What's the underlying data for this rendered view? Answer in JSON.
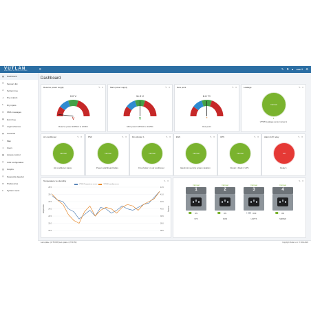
{
  "brand": {
    "name": "VUTLAN",
    "tagline": "MONITORING & CONTROL SYSTEMS"
  },
  "topbar": {
    "user": "user1"
  },
  "sidebar": {
    "items": [
      {
        "label": "Dashboard",
        "icon": "dashboard-icon"
      },
      {
        "label": "Sensors list",
        "icon": "list-icon"
      },
      {
        "label": "System tree",
        "icon": "tree-icon"
      },
      {
        "label": "Dry outputs",
        "icon": "output-icon"
      },
      {
        "label": "Dry inputs",
        "icon": "input-icon"
      },
      {
        "label": "SMS messages",
        "icon": "sms-icon"
      },
      {
        "label": "Event log",
        "icon": "log-icon"
      },
      {
        "label": "Logic schemes",
        "icon": "logic-icon"
      },
      {
        "label": "Cameras",
        "icon": "camera-icon"
      },
      {
        "label": "Map",
        "icon": "map-icon"
      },
      {
        "label": "Users",
        "icon": "users-icon"
      },
      {
        "label": "Access control",
        "icon": "lock-icon"
      },
      {
        "label": "CAN configuration",
        "icon": "can-icon"
      },
      {
        "label": "Graphs",
        "icon": "graph-icon"
      },
      {
        "label": "Nanovolts detector",
        "icon": "detector-icon"
      },
      {
        "label": "Preferences",
        "icon": "gear-icon"
      },
      {
        "label": "System menu",
        "icon": "menu-icon"
      }
    ]
  },
  "page": {
    "title": "Dashboard"
  },
  "gauges": [
    {
      "title": "Reserve power supply",
      "value": "0.0 V",
      "letter": "V",
      "letter_color": "#c0392b",
      "caption": "Reserve power 220VAC to 12VDC",
      "needle_frac": 0.04
    },
    {
      "title": "Main power supply",
      "value": "11.9 V",
      "letter": "V",
      "letter_color": "#4caf50",
      "caption": "Main power 220VAC to 12VDC",
      "needle_frac": 0.5
    },
    {
      "title": "Dew point",
      "value": "6.6 °C",
      "letter": "°",
      "letter_color": "#e67e22",
      "caption": "Dew point",
      "needle_frac": 0.5
    }
  ],
  "leakage": {
    "title": "Leakage",
    "status": "Normal",
    "caption": "VT535 Leakage sensor (area 1)",
    "color": "#7ab32e"
  },
  "status_panels": [
    {
      "title": "Air conditioner",
      "status": "Normal",
      "caption": "Air conditioner status",
      "color": "#7ab32e"
    },
    {
      "title": "PSF",
      "status": "Normal",
      "caption": "Power switchboard failure",
      "color": "#7ab32e"
    },
    {
      "title": "Fire shutter 1",
      "status": "Normal",
      "caption": "Fire shutter 1 is air conditioner",
      "color": "#7ab32e"
    },
    {
      "title": "ESS",
      "status": "Normal",
      "caption": "Electronic security system violation",
      "color": "#7ab32e"
    },
    {
      "title": "UPS",
      "status": "Normal",
      "caption": "Router 1 Rack 1 UPS",
      "color": "#7ab32e"
    },
    {
      "title": "Alarm 12V relay",
      "status": "Off",
      "caption": "Relay 1",
      "color": "#e53935"
    }
  ],
  "chart_panel": {
    "title": "Temperature vs Humidity"
  },
  "chart_data": {
    "type": "line",
    "title": "",
    "legend": [
      "VT500 Temperature sensor",
      "VT535 humidity sensor"
    ],
    "ylabel_left": "temperature",
    "ylabel_right": "humidity",
    "ylim_left": [
      22.5,
      25.5
    ],
    "ylim_right": [
      38.5,
      41.5
    ],
    "y_ticks_left": [
      "25.5",
      "25.0",
      "24.5",
      "24.0",
      "23.5",
      "23.0",
      "22.5"
    ],
    "y_ticks_right": [
      "41.5",
      "41.0",
      "40.5",
      "40.0",
      "39.5",
      "39.0",
      "38.5"
    ],
    "series": [
      {
        "name": "VT500 Temperature sensor",
        "color": "#5b86b8",
        "axis": "left",
        "values": [
          24.9,
          24.6,
          24.5,
          24.0,
          23.8,
          23.3,
          23.6,
          23.9,
          23.5,
          24.1,
          24.0,
          23.7,
          23.9,
          24.2,
          24.0,
          23.9,
          24.1,
          24.3,
          24.4,
          24.8,
          25.2
        ]
      },
      {
        "name": "VT535 humidity sensor",
        "color": "#e68a2e",
        "axis": "right",
        "values": [
          41.0,
          40.6,
          40.3,
          39.6,
          39.2,
          39.0,
          39.8,
          40.2,
          39.5,
          39.9,
          40.1,
          40.0,
          39.7,
          40.1,
          40.3,
          40.2,
          39.9,
          40.3,
          40.5,
          40.7,
          41.2
        ]
      }
    ]
  },
  "sockets": [
    {
      "num": "1",
      "status": "Normal",
      "state": "ON",
      "label": "UPS",
      "on": true
    },
    {
      "num": "2",
      "status": "Normal",
      "state": "ON",
      "label": "FANS",
      "on": true
    },
    {
      "num": "3",
      "status": "Normal",
      "state": "OFF",
      "label": "LIGHTS",
      "on": false
    },
    {
      "num": "4",
      "status": "Normal",
      "state": "ON",
      "label": "SERVER",
      "on": true
    }
  ],
  "footer": {
    "left": "Last update: (17:58 PM) Next update: (17:59 PM)",
    "right": "Copyright Vutlan s.r.o. © 2011-2021"
  }
}
